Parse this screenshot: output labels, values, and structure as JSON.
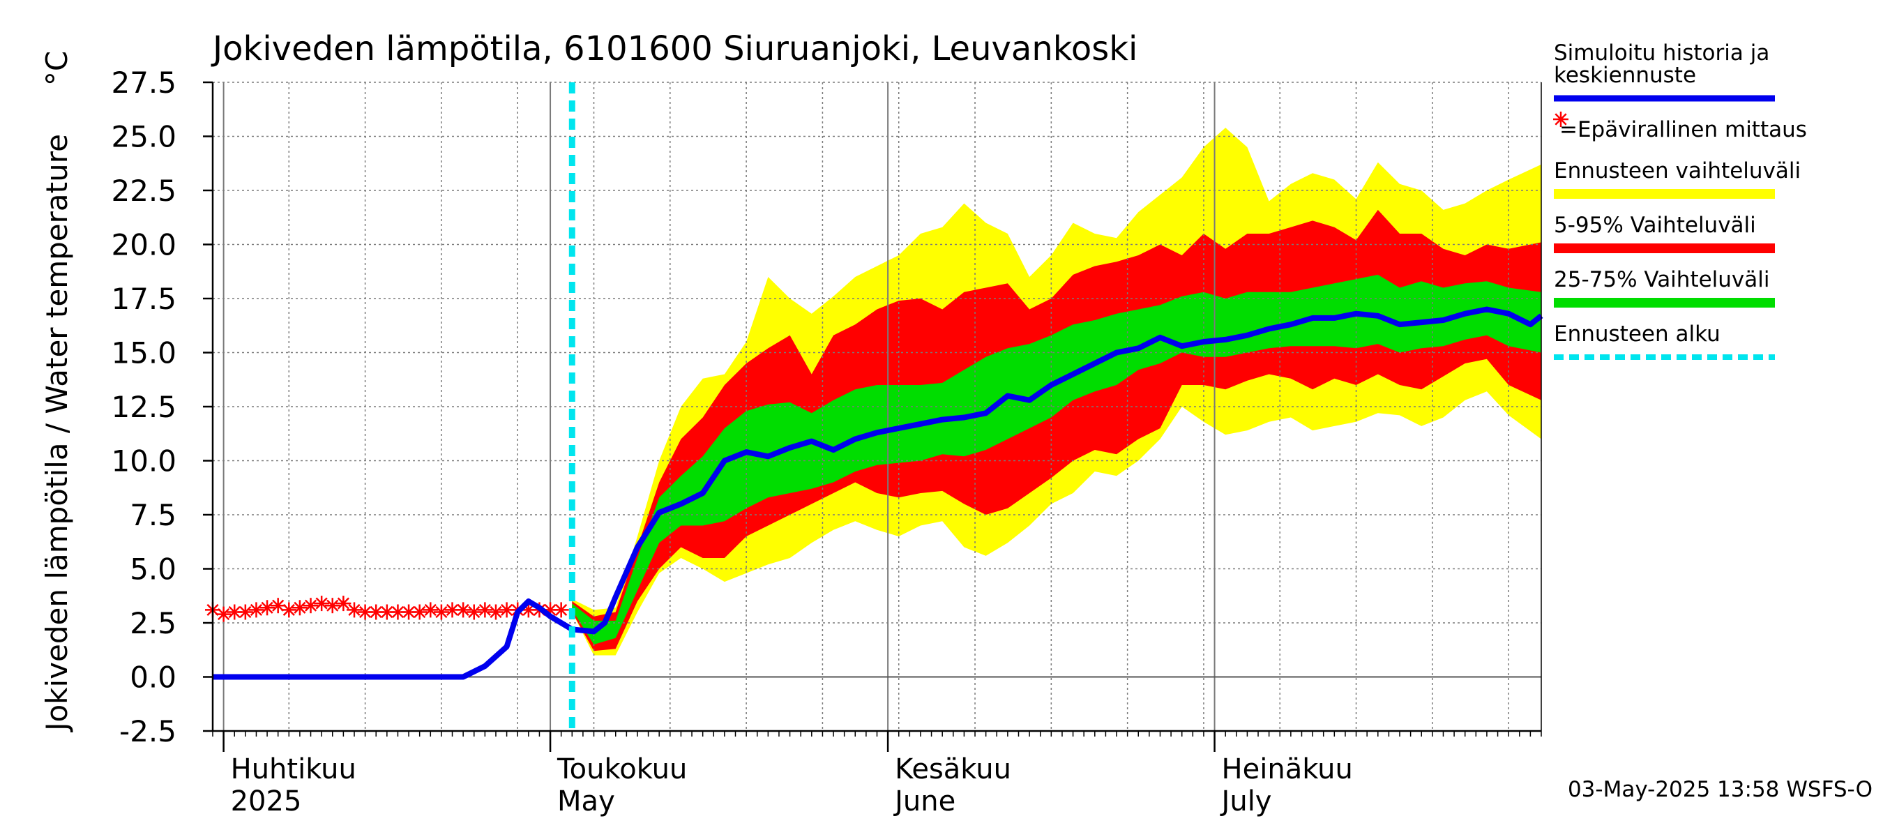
{
  "chart_data": {
    "type": "area",
    "title": "Jokiveden lämpötila, 6101600 Siuruanjoki, Leuvankoski",
    "ylabel": "Jokiveden lämpötila / Water temperature",
    "yunit": "°C",
    "ylim": [
      -2.5,
      27.5
    ],
    "yticks": [
      "27.5",
      "25.0",
      "22.5",
      "20.0",
      "17.5",
      "15.0",
      "12.5",
      "10.0",
      "7.5",
      "5.0",
      "2.5",
      "0.0",
      "-2.5"
    ],
    "xlim": [
      "2025-03-31",
      "2025-07-31"
    ],
    "grid": true,
    "month_labels": [
      {
        "date": "2025-04-01",
        "fi": "Huhtikuu",
        "en": "2025"
      },
      {
        "date": "2025-05-01",
        "fi": "Toukokuu",
        "en": "May"
      },
      {
        "date": "2025-06-01",
        "fi": "Kesäkuu",
        "en": "June"
      },
      {
        "date": "2025-07-01",
        "fi": "Heinäkuu",
        "en": "July"
      }
    ],
    "forecast_start": "2025-05-03",
    "series": [
      {
        "name": "Ennusteen vaihteluväli",
        "color": "#ffff00",
        "kind": "band",
        "x": [
          "2025-05-03",
          "2025-05-05",
          "2025-05-07",
          "2025-05-09",
          "2025-05-11",
          "2025-05-13",
          "2025-05-15",
          "2025-05-17",
          "2025-05-19",
          "2025-05-21",
          "2025-05-23",
          "2025-05-25",
          "2025-05-27",
          "2025-05-29",
          "2025-05-31",
          "2025-06-02",
          "2025-06-04",
          "2025-06-06",
          "2025-06-08",
          "2025-06-10",
          "2025-06-12",
          "2025-06-14",
          "2025-06-16",
          "2025-06-18",
          "2025-06-20",
          "2025-06-22",
          "2025-06-24",
          "2025-06-26",
          "2025-06-28",
          "2025-06-30",
          "2025-07-02",
          "2025-07-04",
          "2025-07-06",
          "2025-07-08",
          "2025-07-10",
          "2025-07-12",
          "2025-07-14",
          "2025-07-16",
          "2025-07-18",
          "2025-07-20",
          "2025-07-22",
          "2025-07-24",
          "2025-07-26",
          "2025-07-28",
          "2025-07-31"
        ],
        "upper": [
          3.6,
          3.1,
          3.2,
          6.5,
          10.0,
          12.5,
          13.8,
          14.0,
          15.5,
          18.5,
          17.5,
          16.8,
          17.6,
          18.5,
          19.0,
          19.5,
          20.5,
          20.8,
          21.9,
          21.0,
          20.5,
          18.5,
          19.5,
          21.0,
          20.5,
          20.3,
          21.5,
          22.3,
          23.1,
          24.5,
          25.4,
          24.5,
          22.0,
          22.8,
          23.3,
          23.0,
          22.1,
          23.8,
          22.8,
          22.5,
          21.6,
          21.9,
          22.5,
          23.0,
          23.7
        ],
        "lower": [
          3.0,
          1.0,
          1.0,
          3.0,
          4.8,
          5.5,
          5.0,
          4.4,
          4.8,
          5.2,
          5.5,
          6.2,
          6.8,
          7.2,
          6.8,
          6.5,
          7.0,
          7.2,
          6.0,
          5.6,
          6.2,
          7.0,
          8.0,
          8.5,
          9.5,
          9.3,
          10.0,
          11.0,
          12.5,
          11.8,
          11.2,
          11.4,
          11.8,
          12.0,
          11.4,
          11.6,
          11.8,
          12.2,
          12.1,
          11.6,
          12.0,
          12.8,
          13.2,
          12.1,
          11.0
        ]
      },
      {
        "name": "5-95% Vaihteluväli",
        "color": "#ff0000",
        "kind": "band",
        "x": [
          "2025-05-03",
          "2025-05-05",
          "2025-05-07",
          "2025-05-09",
          "2025-05-11",
          "2025-05-13",
          "2025-05-15",
          "2025-05-17",
          "2025-05-19",
          "2025-05-21",
          "2025-05-23",
          "2025-05-25",
          "2025-05-27",
          "2025-05-29",
          "2025-05-31",
          "2025-06-02",
          "2025-06-04",
          "2025-06-06",
          "2025-06-08",
          "2025-06-10",
          "2025-06-12",
          "2025-06-14",
          "2025-06-16",
          "2025-06-18",
          "2025-06-20",
          "2025-06-22",
          "2025-06-24",
          "2025-06-26",
          "2025-06-28",
          "2025-06-30",
          "2025-07-02",
          "2025-07-04",
          "2025-07-06",
          "2025-07-08",
          "2025-07-10",
          "2025-07-12",
          "2025-07-14",
          "2025-07-16",
          "2025-07-18",
          "2025-07-20",
          "2025-07-22",
          "2025-07-24",
          "2025-07-26",
          "2025-07-28",
          "2025-07-31"
        ],
        "upper": [
          3.5,
          2.8,
          3.0,
          6.0,
          9.0,
          11.0,
          12.0,
          13.5,
          14.5,
          15.2,
          15.8,
          14.0,
          15.8,
          16.3,
          17.0,
          17.4,
          17.5,
          17.0,
          17.8,
          18.0,
          18.2,
          17.0,
          17.5,
          18.6,
          19.0,
          19.2,
          19.5,
          20.0,
          19.5,
          20.5,
          19.8,
          20.5,
          20.5,
          20.8,
          21.1,
          20.8,
          20.2,
          21.6,
          20.5,
          20.5,
          19.8,
          19.5,
          20.0,
          19.8,
          20.1
        ],
        "lower": [
          3.0,
          1.2,
          1.3,
          3.5,
          5.0,
          6.0,
          5.5,
          5.5,
          6.5,
          7.0,
          7.5,
          8.0,
          8.5,
          9.0,
          8.5,
          8.3,
          8.5,
          8.6,
          8.0,
          7.5,
          7.8,
          8.5,
          9.2,
          10.0,
          10.5,
          10.3,
          11.0,
          11.5,
          13.5,
          13.5,
          13.3,
          13.7,
          14.0,
          13.8,
          13.3,
          13.8,
          13.5,
          14.0,
          13.5,
          13.3,
          13.9,
          14.5,
          14.7,
          13.5,
          12.8
        ]
      },
      {
        "name": "25-75% Vaihteluväli",
        "color": "#00dd00",
        "kind": "band",
        "x": [
          "2025-05-03",
          "2025-05-05",
          "2025-05-07",
          "2025-05-09",
          "2025-05-11",
          "2025-05-13",
          "2025-05-15",
          "2025-05-17",
          "2025-05-19",
          "2025-05-21",
          "2025-05-23",
          "2025-05-25",
          "2025-05-27",
          "2025-05-29",
          "2025-05-31",
          "2025-06-02",
          "2025-06-04",
          "2025-06-06",
          "2025-06-08",
          "2025-06-10",
          "2025-06-12",
          "2025-06-14",
          "2025-06-16",
          "2025-06-18",
          "2025-06-20",
          "2025-06-22",
          "2025-06-24",
          "2025-06-26",
          "2025-06-28",
          "2025-06-30",
          "2025-07-02",
          "2025-07-04",
          "2025-07-06",
          "2025-07-08",
          "2025-07-10",
          "2025-07-12",
          "2025-07-14",
          "2025-07-16",
          "2025-07-18",
          "2025-07-20",
          "2025-07-22",
          "2025-07-24",
          "2025-07-26",
          "2025-07-28",
          "2025-07-31"
        ],
        "upper": [
          3.4,
          2.6,
          2.6,
          5.5,
          8.3,
          9.3,
          10.2,
          11.5,
          12.3,
          12.6,
          12.7,
          12.2,
          12.8,
          13.3,
          13.5,
          13.5,
          13.5,
          13.6,
          14.2,
          14.8,
          15.2,
          15.4,
          15.8,
          16.3,
          16.5,
          16.8,
          17.0,
          17.2,
          17.6,
          17.8,
          17.5,
          17.8,
          17.8,
          17.8,
          18.0,
          18.2,
          18.4,
          18.6,
          18.0,
          18.3,
          18.0,
          18.2,
          18.3,
          18.0,
          17.8
        ],
        "lower": [
          3.1,
          1.5,
          1.8,
          4.0,
          6.2,
          7.0,
          7.0,
          7.2,
          7.8,
          8.3,
          8.5,
          8.7,
          9.0,
          9.5,
          9.8,
          9.9,
          10.0,
          10.3,
          10.2,
          10.5,
          11.0,
          11.5,
          12.0,
          12.8,
          13.2,
          13.5,
          14.2,
          14.5,
          15.0,
          14.8,
          14.8,
          15.0,
          15.2,
          15.3,
          15.3,
          15.3,
          15.2,
          15.4,
          15.0,
          15.2,
          15.3,
          15.6,
          15.8,
          15.3,
          15.0
        ]
      },
      {
        "name": "Simuloitu historia ja keskiennuste",
        "color": "#0000ee",
        "kind": "line",
        "x": [
          "2025-03-31",
          "2025-04-23",
          "2025-04-25",
          "2025-04-27",
          "2025-04-28",
          "2025-04-29",
          "2025-04-30",
          "2025-05-01",
          "2025-05-03",
          "2025-05-05",
          "2025-05-06",
          "2025-05-07",
          "2025-05-09",
          "2025-05-11",
          "2025-05-13",
          "2025-05-15",
          "2025-05-17",
          "2025-05-19",
          "2025-05-21",
          "2025-05-23",
          "2025-05-25",
          "2025-05-27",
          "2025-05-29",
          "2025-05-31",
          "2025-06-02",
          "2025-06-04",
          "2025-06-06",
          "2025-06-08",
          "2025-06-10",
          "2025-06-12",
          "2025-06-14",
          "2025-06-16",
          "2025-06-18",
          "2025-06-20",
          "2025-06-22",
          "2025-06-24",
          "2025-06-26",
          "2025-06-28",
          "2025-06-30",
          "2025-07-02",
          "2025-07-04",
          "2025-07-06",
          "2025-07-08",
          "2025-07-10",
          "2025-07-12",
          "2025-07-14",
          "2025-07-16",
          "2025-07-18",
          "2025-07-20",
          "2025-07-22",
          "2025-07-24",
          "2025-07-26",
          "2025-07-28",
          "2025-07-30",
          "2025-07-31"
        ],
        "y": [
          0.0,
          0.0,
          0.5,
          1.4,
          3.0,
          3.5,
          3.2,
          2.8,
          2.2,
          2.1,
          2.5,
          3.7,
          6.0,
          7.6,
          8.0,
          8.5,
          10.0,
          10.4,
          10.2,
          10.6,
          10.9,
          10.5,
          11.0,
          11.3,
          11.5,
          11.7,
          11.9,
          12.0,
          12.2,
          13.0,
          12.8,
          13.5,
          14.0,
          14.5,
          15.0,
          15.2,
          15.7,
          15.3,
          15.5,
          15.6,
          15.8,
          16.1,
          16.3,
          16.6,
          16.6,
          16.8,
          16.7,
          16.3,
          16.4,
          16.5,
          16.8,
          17.0,
          16.8,
          16.3,
          16.7
        ]
      },
      {
        "name": "=Epävirallinen mittaus",
        "color": "#ff0000",
        "kind": "marker",
        "x": [
          "2025-03-31",
          "2025-04-01",
          "2025-04-02",
          "2025-04-03",
          "2025-04-04",
          "2025-04-05",
          "2025-04-06",
          "2025-04-07",
          "2025-04-08",
          "2025-04-09",
          "2025-04-10",
          "2025-04-11",
          "2025-04-12",
          "2025-04-13",
          "2025-04-14",
          "2025-04-15",
          "2025-04-16",
          "2025-04-17",
          "2025-04-18",
          "2025-04-19",
          "2025-04-20",
          "2025-04-21",
          "2025-04-22",
          "2025-04-23",
          "2025-04-24",
          "2025-04-25",
          "2025-04-26",
          "2025-04-27",
          "2025-04-28",
          "2025-04-29",
          "2025-04-30",
          "2025-05-01",
          "2025-05-02"
        ],
        "y": [
          3.1,
          2.9,
          3.0,
          3.0,
          3.1,
          3.2,
          3.3,
          3.1,
          3.2,
          3.3,
          3.4,
          3.3,
          3.4,
          3.1,
          3.0,
          3.0,
          3.0,
          3.0,
          3.0,
          3.0,
          3.1,
          3.0,
          3.1,
          3.1,
          3.0,
          3.1,
          3.0,
          3.1,
          3.1,
          3.1,
          3.1,
          3.1,
          3.1
        ]
      }
    ],
    "legend": {
      "placement": "right",
      "items": [
        {
          "label": "Simuloitu historia ja keskiennuste",
          "color": "#0000ee",
          "kind": "line"
        },
        {
          "label": "=Epävirallinen mittaus",
          "color": "#ff0000",
          "kind": "marker"
        },
        {
          "label": "Ennusteen vaihteluväli",
          "color": "#ffff00",
          "kind": "band"
        },
        {
          "label": "5-95% Vaihteluväli",
          "color": "#ff0000",
          "kind": "band"
        },
        {
          "label": "25-75% Vaihteluväli",
          "color": "#00dd00",
          "kind": "band"
        },
        {
          "label": "Ennusteen alku",
          "color": "#00e5ee",
          "kind": "dashed"
        }
      ]
    },
    "timestamp": "03-May-2025 13:58 WSFS-O"
  }
}
